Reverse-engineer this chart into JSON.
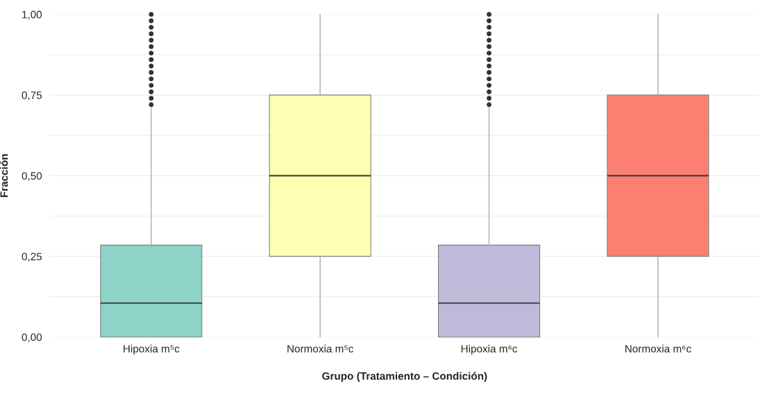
{
  "chart_data": {
    "type": "box",
    "xlabel": "Grupo (Tratamiento – Condición)",
    "ylabel": "Fracción",
    "categories": [
      "Hipoxia m⁵c",
      "Normoxia m⁵c",
      "Hipoxia m⁶c",
      "Normoxia m⁶c"
    ],
    "colors": [
      "#8dd3c7",
      "#ffffb3",
      "#bebada",
      "#fb8072"
    ],
    "boxes": [
      {
        "low": 0,
        "q1": 0,
        "median": 0.105,
        "q3": 0.285,
        "high": 0.71,
        "outliers": [
          0.72,
          0.74,
          0.76,
          0.78,
          0.8,
          0.82,
          0.84,
          0.86,
          0.88,
          0.9,
          0.92,
          0.94,
          0.96,
          0.98,
          1.0
        ]
      },
      {
        "low": 0,
        "q1": 0.25,
        "median": 0.5,
        "q3": 0.75,
        "high": 1.0
      },
      {
        "low": 0,
        "q1": 0,
        "median": 0.105,
        "q3": 0.285,
        "high": 0.71,
        "outliers": [
          0.72,
          0.74,
          0.76,
          0.78,
          0.8,
          0.82,
          0.84,
          0.86,
          0.88,
          0.9,
          0.92,
          0.94,
          0.96,
          0.98,
          1.0
        ]
      },
      {
        "low": 0,
        "q1": 0.25,
        "median": 0.5,
        "q3": 0.75,
        "high": 1.0
      }
    ],
    "ylim": [
      0,
      1.0
    ],
    "yticks": [
      {
        "value": 0,
        "label": "0,00"
      },
      {
        "value": 0.125,
        "label": null
      },
      {
        "value": 0.25,
        "label": "0,25"
      },
      {
        "value": 0.375,
        "label": null
      },
      {
        "value": 0.5,
        "label": "0,50"
      },
      {
        "value": 0.625,
        "label": null
      },
      {
        "value": 0.75,
        "label": "0,75"
      },
      {
        "value": 0.875,
        "label": null
      },
      {
        "value": 1.0,
        "label": "1,00"
      }
    ],
    "grid": "y"
  }
}
